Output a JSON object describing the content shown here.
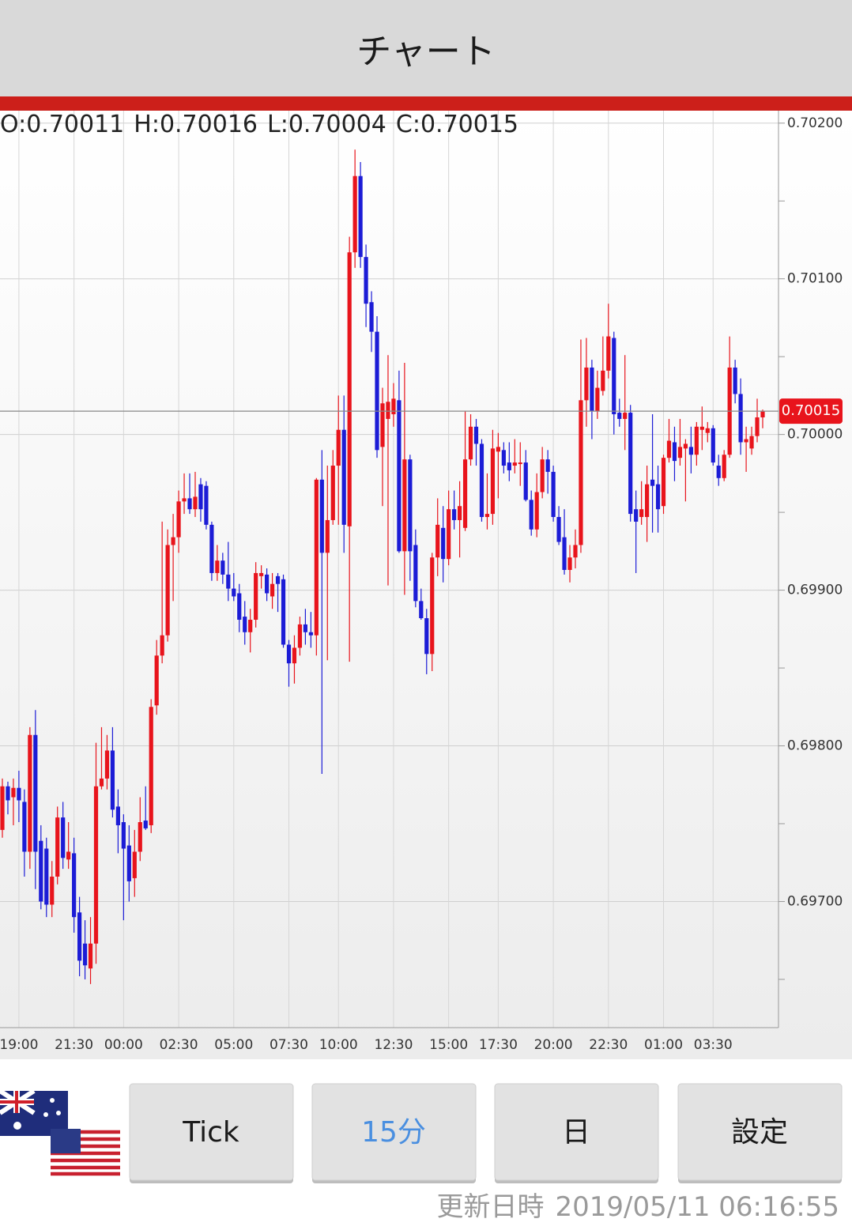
{
  "header": {
    "title": "チャート"
  },
  "ohlc_header": {
    "labels": [
      "O:",
      "H:",
      "L:",
      "C:"
    ]
  },
  "chart_data": {
    "type": "candlestick",
    "categories": [
      null,
      null,
      null,
      "19:00",
      null,
      null,
      null,
      null,
      null,
      null,
      null,
      null,
      null,
      "21:30",
      null,
      null,
      null,
      null,
      null,
      null,
      null,
      null,
      "00:00",
      null,
      null,
      null,
      null,
      null,
      null,
      null,
      null,
      null,
      "02:30",
      null,
      null,
      null,
      null,
      null,
      null,
      null,
      null,
      null,
      "05:00",
      null,
      null,
      null,
      null,
      null,
      null,
      null,
      null,
      null,
      "07:30",
      null,
      null,
      null,
      null,
      null,
      null,
      null,
      null,
      "10:00",
      null,
      null,
      null,
      null,
      null,
      null,
      null,
      null,
      null,
      "12:30",
      null,
      null,
      null,
      null,
      null,
      null,
      null,
      null,
      null,
      "15:00",
      null,
      null,
      null,
      null,
      null,
      null,
      null,
      null,
      "17:30",
      null,
      null,
      null,
      null,
      null,
      null,
      null,
      null,
      null,
      "20:00",
      null,
      null,
      null,
      null,
      null,
      null,
      null,
      null,
      null,
      "22:30",
      null,
      null,
      null,
      null,
      null,
      null,
      null,
      null,
      null,
      "01:00",
      null,
      null,
      null,
      null,
      null,
      null,
      null,
      null,
      "03:30",
      null,
      null,
      null,
      null,
      null,
      null,
      null,
      null,
      null
    ],
    "open": [
      0.69746,
      0.69774,
      0.69767,
      0.69773,
      0.69764,
      0.69732,
      0.69807,
      0.69739,
      0.69734,
      0.69698,
      0.69716,
      0.69754,
      0.69727,
      0.69731,
      0.69693,
      0.69673,
      0.69657,
      0.69673,
      0.69774,
      0.69779,
      0.69797,
      0.69761,
      0.69751,
      0.69736,
      0.69715,
      0.69732,
      0.69752,
      0.69749,
      0.69826,
      0.69858,
      0.69871,
      0.69929,
      0.69934,
      0.69957,
      0.69959,
      0.69952,
      0.69968,
      0.69967,
      0.69942,
      0.69911,
      0.69919,
      0.6991,
      0.69901,
      0.69898,
      0.69883,
      0.69873,
      0.69881,
      0.69909,
      0.6991,
      0.69896,
      0.69909,
      0.69907,
      0.69865,
      0.69853,
      0.69863,
      0.69878,
      0.69873,
      0.69871,
      0.69971,
      0.69924,
      0.69945,
      0.6998,
      0.70003,
      0.69941,
      0.70117,
      0.70166,
      0.70114,
      0.70085,
      0.70066,
      0.69992,
      0.7001,
      0.70013,
      0.70022,
      0.69925,
      0.69984,
      0.69929,
      0.69893,
      0.69882,
      0.69859,
      0.69921,
      0.6994,
      0.6992,
      0.69952,
      0.69945,
      0.6994,
      0.69984,
      0.70005,
      0.69994,
      0.69947,
      0.69949,
      0.69989,
      0.6999,
      0.69982,
      0.6998,
      0.69981,
      0.69982,
      0.69958,
      0.69939,
      0.69963,
      0.69984,
      0.69976,
      0.69947,
      0.69934,
      0.69913,
      0.69921,
      0.69929,
      0.70022,
      0.70043,
      0.70015,
      0.70028,
      0.70041,
      0.70062,
      0.70014,
      0.7001,
      0.70014,
      0.69952,
      0.69947,
      0.69947,
      0.69971,
      0.69968,
      0.69954,
      0.69985,
      0.69995,
      0.69985,
      0.69991,
      0.69992,
      0.69987,
      0.70003,
      0.70001,
      0.70004,
      0.6998,
      0.69972,
      0.69987,
      0.70043,
      0.70026,
      0.69995,
      0.69991,
      0.69999,
      0.70011
    ],
    "high": [
      0.69779,
      0.69777,
      0.69779,
      0.69784,
      0.69772,
      0.69812,
      0.69823,
      0.69749,
      0.69741,
      0.69726,
      0.69761,
      0.69764,
      0.69751,
      0.69741,
      0.69703,
      0.69688,
      0.6969,
      0.69802,
      0.69812,
      0.69807,
      0.69812,
      0.69772,
      0.69756,
      0.69749,
      0.69746,
      0.69767,
      0.69774,
      0.6983,
      0.69868,
      0.69944,
      0.69939,
      0.69949,
      0.69964,
      0.69975,
      0.69975,
      0.69976,
      0.69972,
      0.6997,
      0.69944,
      0.69929,
      0.69924,
      0.69931,
      0.69911,
      0.69904,
      0.69893,
      0.69888,
      0.69918,
      0.69916,
      0.69914,
      0.69911,
      0.69911,
      0.6991,
      0.69868,
      0.69871,
      0.69883,
      0.69888,
      0.69886,
      0.69972,
      0.6999,
      0.6998,
      0.6999,
      0.70025,
      0.70025,
      0.70127,
      0.70183,
      0.70175,
      0.70122,
      0.70092,
      0.70076,
      0.7003,
      0.70051,
      0.70033,
      0.70041,
      0.70046,
      0.69987,
      0.69939,
      0.69901,
      0.69888,
      0.69924,
      0.69959,
      0.69954,
      0.69964,
      0.69964,
      0.6997,
      0.70015,
      0.70013,
      0.7001,
      0.69997,
      0.69975,
      0.70003,
      0.70001,
      0.69995,
      0.69995,
      0.69997,
      0.69995,
      0.6999,
      0.69964,
      0.69975,
      0.69992,
      0.6999,
      0.6998,
      0.69954,
      0.69952,
      0.69929,
      0.69939,
      0.70061,
      0.70062,
      0.70048,
      0.70041,
      0.70063,
      0.70084,
      0.70066,
      0.70023,
      0.70051,
      0.70019,
      0.69964,
      0.6997,
      0.6998,
      0.70013,
      0.6998,
      0.69987,
      0.7001,
      0.70005,
      0.7001,
      0.69997,
      0.70005,
      0.70008,
      0.70018,
      0.70008,
      0.70006,
      0.69987,
      0.6999,
      0.70063,
      0.70048,
      0.70036,
      0.70005,
      0.70005,
      0.70023,
      0.70016
    ],
    "low": [
      0.69741,
      0.69756,
      0.69749,
      0.69751,
      0.69716,
      0.69721,
      0.69708,
      0.69695,
      0.6969,
      0.6969,
      0.69711,
      0.69721,
      0.69721,
      0.6968,
      0.69652,
      0.6965,
      0.69647,
      0.6966,
      0.69772,
      0.69772,
      0.69754,
      0.69731,
      0.69688,
      0.697,
      0.69703,
      0.69726,
      0.69746,
      0.69744,
      0.6982,
      0.69853,
      0.69867,
      0.69893,
      0.69924,
      0.69949,
      0.69949,
      0.69947,
      0.69944,
      0.69939,
      0.69906,
      0.69906,
      0.69904,
      0.69893,
      0.69893,
      0.69873,
      0.69865,
      0.6986,
      0.69876,
      0.69901,
      0.69893,
      0.69888,
      0.69886,
      0.69863,
      0.69838,
      0.6984,
      0.69858,
      0.69865,
      0.69863,
      0.69858,
      0.69782,
      0.69855,
      0.69942,
      0.69942,
      0.69924,
      0.69854,
      0.70107,
      0.70107,
      0.70069,
      0.70053,
      0.69985,
      0.69954,
      0.69903,
      0.70005,
      0.69924,
      0.69897,
      0.69906,
      0.69889,
      0.69881,
      0.69846,
      0.69848,
      0.69909,
      0.69905,
      0.69916,
      0.69939,
      0.69921,
      0.69938,
      0.6998,
      0.6998,
      0.69944,
      0.69939,
      0.69942,
      0.69959,
      0.69975,
      0.6997,
      0.69975,
      0.69967,
      0.69957,
      0.69935,
      0.69934,
      0.69959,
      0.69962,
      0.69944,
      0.69929,
      0.6991,
      0.69905,
      0.69914,
      0.69924,
      0.70005,
      0.69997,
      0.7001,
      0.70025,
      0.70036,
      0.7,
      0.70005,
      0.6999,
      0.69944,
      0.69911,
      0.69942,
      0.69931,
      0.69937,
      0.69937,
      0.69949,
      0.69982,
      0.6997,
      0.6998,
      0.69957,
      0.69975,
      0.6998,
      0.6999,
      0.69995,
      0.6998,
      0.69967,
      0.6997,
      0.69985,
      0.7002,
      0.69987,
      0.69976,
      0.69987,
      0.69995,
      0.70004
    ],
    "close": [
      0.69774,
      0.69765,
      0.69773,
      0.69765,
      0.69732,
      0.69807,
      0.69732,
      0.697,
      0.69698,
      0.69716,
      0.69754,
      0.69728,
      0.69732,
      0.6969,
      0.69662,
      0.69659,
      0.69673,
      0.69774,
      0.69779,
      0.69797,
      0.69759,
      0.69749,
      0.69734,
      0.69713,
      0.69732,
      0.69751,
      0.69747,
      0.69825,
      0.69858,
      0.69871,
      0.69929,
      0.69934,
      0.69957,
      0.69959,
      0.69952,
      0.6996,
      0.69952,
      0.69942,
      0.69911,
      0.69919,
      0.6991,
      0.69901,
      0.69896,
      0.69881,
      0.69873,
      0.69881,
      0.69911,
      0.69911,
      0.69898,
      0.69904,
      0.69904,
      0.69865,
      0.69853,
      0.69863,
      0.69878,
      0.69873,
      0.69871,
      0.69971,
      0.69924,
      0.69945,
      0.6998,
      0.70003,
      0.69942,
      0.70117,
      0.70166,
      0.70114,
      0.70084,
      0.70066,
      0.6999,
      0.7002,
      0.70021,
      0.70023,
      0.69925,
      0.69984,
      0.69925,
      0.69893,
      0.69882,
      0.69859,
      0.69921,
      0.69942,
      0.6992,
      0.69952,
      0.69945,
      0.69954,
      0.69984,
      0.70005,
      0.69994,
      0.69947,
      0.69949,
      0.69991,
      0.69992,
      0.6998,
      0.69977,
      0.69982,
      0.69982,
      0.69958,
      0.69939,
      0.69963,
      0.69984,
      0.69976,
      0.69947,
      0.69931,
      0.69913,
      0.69921,
      0.69929,
      0.70022,
      0.70043,
      0.70015,
      0.7003,
      0.70041,
      0.70063,
      0.70013,
      0.7001,
      0.70014,
      0.69949,
      0.69944,
      0.69952,
      0.69968,
      0.69967,
      0.69952,
      0.69985,
      0.69996,
      0.69983,
      0.69992,
      0.69994,
      0.69987,
      0.70005,
      0.70005,
      0.70004,
      0.69982,
      0.69972,
      0.69987,
      0.70043,
      0.70026,
      0.69995,
      0.69997,
      0.69999,
      0.70011,
      0.70015
    ],
    "ylim": [
      0.69619,
      0.70208
    ],
    "yticks": [
      {
        "value": 0.697,
        "label": "0.69700"
      },
      {
        "value": 0.698,
        "label": "0.69800"
      },
      {
        "value": 0.699,
        "label": "0.69900"
      },
      {
        "value": 0.7,
        "label": "0.70000"
      },
      {
        "value": 0.701,
        "label": "0.70100"
      },
      {
        "value": 0.702,
        "label": "0.70200"
      }
    ],
    "y_minor_ticks": [
      0.6965,
      0.6975,
      0.6985,
      0.6995,
      0.7005,
      0.7015
    ],
    "grid": true,
    "up_color": "#e8141c",
    "down_color": "#1c1cd6"
  },
  "buttons": [
    "Tick",
    "15分",
    "日",
    "設定"
  ],
  "selected_button": 1,
  "footer": {
    "label": "更新日時",
    "timestamp": "2019/05/11 06:16:55"
  }
}
